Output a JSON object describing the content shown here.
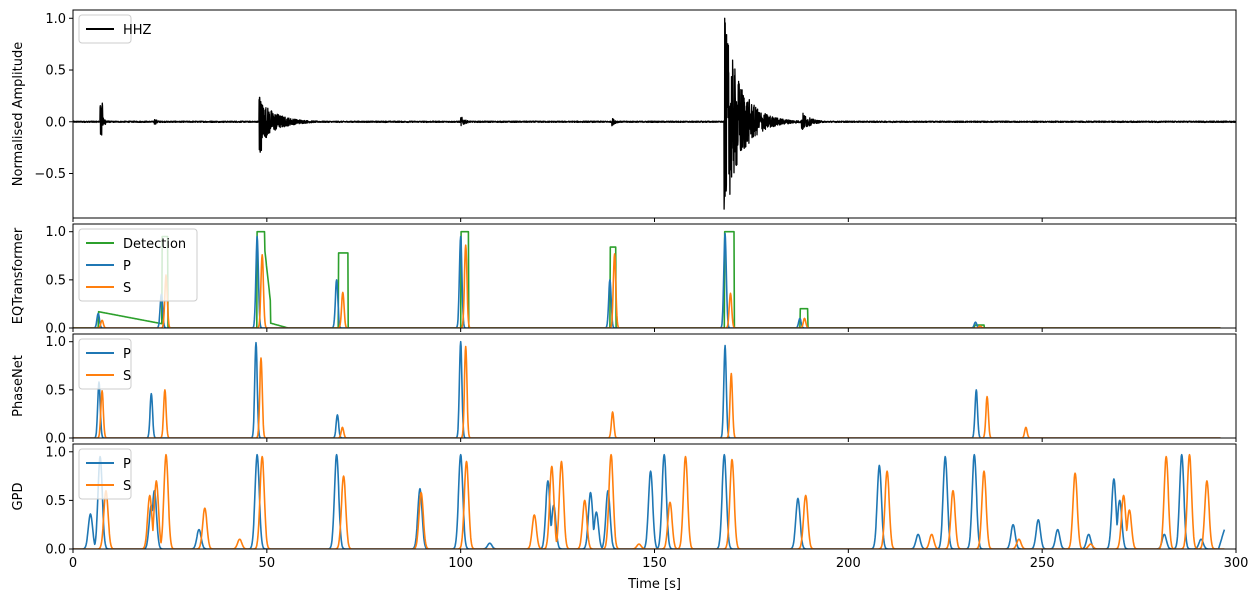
{
  "chart_data": {
    "type": "line",
    "xlabel": "Time [s]",
    "xlim": [
      0,
      300
    ],
    "xticks": [
      0,
      50,
      100,
      150,
      200,
      250,
      300
    ],
    "colors": {
      "waveform": "#000000",
      "detection": "#2ca02c",
      "P": "#1f77b4",
      "S": "#ff7f0e"
    },
    "panels": [
      {
        "id": "waveform",
        "ylabel": "Normalised Amplitude",
        "ylim": [
          -0.93,
          1.08
        ],
        "yticks": [
          -0.5,
          0.0,
          0.5,
          1.0
        ],
        "ytick_labels": [
          "−0.5",
          "0.0",
          "0.5",
          "1.0"
        ],
        "show_xtick_labels": false,
        "legend": {
          "position": "upper-left",
          "entries": [
            "HHZ"
          ]
        },
        "series": [
          {
            "name": "HHZ",
            "kind": "waveform",
            "color": "#000000",
            "noise": 0.006,
            "bursts": [
              {
                "t": 7,
                "amp": 0.18,
                "min": -0.14,
                "decay": 2
              },
              {
                "t": 21,
                "amp": 0.03,
                "decay": 3
              },
              {
                "t": 48,
                "amp": 0.24,
                "min": -0.31,
                "decay": 12
              },
              {
                "t": 100,
                "amp": 0.06,
                "decay": 3
              },
              {
                "t": 139,
                "amp": 0.04,
                "decay": 3
              },
              {
                "t": 168,
                "amp": 1.0,
                "min": -0.85,
                "decay": 12
              },
              {
                "t": 188,
                "amp": 0.1,
                "decay": 6
              }
            ]
          }
        ]
      },
      {
        "id": "eqt",
        "ylabel": "EQTransformer",
        "ylim": [
          0,
          1.08
        ],
        "yticks": [
          0.0,
          0.5,
          1.0
        ],
        "ytick_labels": [
          "0.0",
          "0.5",
          "1.0"
        ],
        "show_xtick_labels": false,
        "legend": {
          "position": "upper-left",
          "entries": [
            "Detection",
            "P",
            "S"
          ]
        },
        "series": [
          {
            "name": "Detection",
            "kind": "segments",
            "color": "#2ca02c",
            "end": 296,
            "segments": [
              {
                "t1": 6.5,
                "t2": 23.5,
                "val": 0.17,
                "dec": 0.04
              },
              {
                "t1": 23.0,
                "t2": 24.5,
                "val": 0.95
              },
              {
                "t1": 47.5,
                "t2": 49.5,
                "val": 1.0
              },
              {
                "t1": 49.5,
                "t2": 51.0,
                "val": 0.8,
                "dec": 0.25
              },
              {
                "t1": 51.0,
                "t2": 55.5,
                "val": 0.05,
                "dec": 0.0
              },
              {
                "t1": 68.5,
                "t2": 71.0,
                "val": 0.78
              },
              {
                "t1": 100.0,
                "t2": 102.0,
                "val": 1.0
              },
              {
                "t1": 138.5,
                "t2": 140.0,
                "val": 0.84
              },
              {
                "t1": 168.0,
                "t2": 170.5,
                "val": 1.0
              },
              {
                "t1": 187.5,
                "t2": 189.5,
                "val": 0.2
              },
              {
                "t1": 232.5,
                "t2": 235.0,
                "val": 0.03
              }
            ]
          },
          {
            "name": "P",
            "kind": "peaks",
            "color": "#1f77b4",
            "end": 296,
            "peaks": [
              [
                6.5,
                0.15
              ],
              [
                22.8,
                0.35
              ],
              [
                47.5,
                0.95
              ],
              [
                68.0,
                0.5
              ],
              [
                100.0,
                0.95
              ],
              [
                138.5,
                0.5
              ],
              [
                168.2,
                0.98
              ],
              [
                187.5,
                0.1
              ],
              [
                232.8,
                0.06
              ]
            ]
          },
          {
            "name": "S",
            "kind": "peaks",
            "color": "#ff7f0e",
            "end": 296,
            "peaks": [
              [
                7.5,
                0.08
              ],
              [
                24.0,
                0.55
              ],
              [
                48.8,
                0.76
              ],
              [
                69.6,
                0.37
              ],
              [
                101.3,
                0.86
              ],
              [
                139.7,
                0.77
              ],
              [
                169.6,
                0.36
              ],
              [
                188.7,
                0.1
              ],
              [
                234.0,
                0.02
              ]
            ]
          }
        ]
      },
      {
        "id": "phasenet",
        "ylabel": "PhaseNet",
        "ylim": [
          0,
          1.08
        ],
        "yticks": [
          0.0,
          0.5,
          1.0
        ],
        "ytick_labels": [
          "0.0",
          "0.5",
          "1.0"
        ],
        "show_xtick_labels": false,
        "legend": {
          "position": "upper-left",
          "entries": [
            "P",
            "S"
          ]
        },
        "series": [
          {
            "name": "P",
            "kind": "peaks",
            "color": "#1f77b4",
            "end": 296,
            "peaks": [
              [
                6.7,
                0.58
              ],
              [
                20.2,
                0.46
              ],
              [
                47.2,
                0.99
              ],
              [
                68.2,
                0.24
              ],
              [
                100.0,
                1.0
              ],
              [
                168.2,
                0.96
              ],
              [
                233.0,
                0.5
              ]
            ]
          },
          {
            "name": "S",
            "kind": "peaks",
            "color": "#ff7f0e",
            "end": 296,
            "peaks": [
              [
                7.5,
                0.49
              ],
              [
                23.7,
                0.5
              ],
              [
                48.5,
                0.83
              ],
              [
                69.5,
                0.11
              ],
              [
                101.3,
                0.95
              ],
              [
                139.2,
                0.27
              ],
              [
                169.8,
                0.67
              ],
              [
                235.8,
                0.43
              ],
              [
                245.8,
                0.11
              ]
            ]
          }
        ]
      },
      {
        "id": "gpd",
        "ylabel": "GPD",
        "ylim": [
          0,
          1.08
        ],
        "yticks": [
          0.0,
          0.5,
          1.0
        ],
        "ytick_labels": [
          "0.0",
          "0.5",
          "1.0"
        ],
        "show_xtick_labels": true,
        "legend": {
          "position": "upper-left",
          "entries": [
            "P",
            "S"
          ]
        },
        "series": [
          {
            "name": "P",
            "kind": "peaks",
            "color": "#1f77b4",
            "end": 297,
            "tail_end": 0.2,
            "peaks": [
              [
                4.5,
                0.36
              ],
              [
                7.0,
                0.95
              ],
              [
                20.2,
                0.45
              ],
              [
                21.0,
                0.6
              ],
              [
                32.5,
                0.2
              ],
              [
                47.5,
                0.97
              ],
              [
                68.0,
                0.97
              ],
              [
                89.5,
                0.62
              ],
              [
                100.0,
                0.97
              ],
              [
                107.5,
                0.06
              ],
              [
                122.5,
                0.7
              ],
              [
                124.0,
                0.45
              ],
              [
                133.5,
                0.58
              ],
              [
                135.0,
                0.38
              ],
              [
                138.0,
                0.6
              ],
              [
                149.0,
                0.8
              ],
              [
                152.5,
                0.97
              ],
              [
                168.0,
                0.97
              ],
              [
                187.0,
                0.52
              ],
              [
                208.0,
                0.86
              ],
              [
                218.0,
                0.15
              ],
              [
                225.0,
                0.95
              ],
              [
                232.5,
                0.97
              ],
              [
                242.5,
                0.25
              ],
              [
                249.0,
                0.3
              ],
              [
                254.0,
                0.2
              ],
              [
                262.0,
                0.15
              ],
              [
                268.5,
                0.72
              ],
              [
                270.0,
                0.5
              ],
              [
                281.5,
                0.15
              ],
              [
                286.0,
                0.97
              ],
              [
                291.0,
                0.1
              ]
            ]
          },
          {
            "name": "S",
            "kind": "peaks",
            "color": "#ff7f0e",
            "end": 297,
            "peaks": [
              [
                8.5,
                0.6
              ],
              [
                19.8,
                0.55
              ],
              [
                21.5,
                0.7
              ],
              [
                24.0,
                0.97
              ],
              [
                34.0,
                0.42
              ],
              [
                43.0,
                0.1
              ],
              [
                48.8,
                0.95
              ],
              [
                69.8,
                0.75
              ],
              [
                89.8,
                0.58
              ],
              [
                101.5,
                0.9
              ],
              [
                119.0,
                0.35
              ],
              [
                123.5,
                0.85
              ],
              [
                126.0,
                0.9
              ],
              [
                132.0,
                0.5
              ],
              [
                138.8,
                0.97
              ],
              [
                146.0,
                0.05
              ],
              [
                154.0,
                0.48
              ],
              [
                158.0,
                0.95
              ],
              [
                170.0,
                0.92
              ],
              [
                189.0,
                0.55
              ],
              [
                210.0,
                0.8
              ],
              [
                221.5,
                0.15
              ],
              [
                227.0,
                0.6
              ],
              [
                235.0,
                0.8
              ],
              [
                244.0,
                0.1
              ],
              [
                258.5,
                0.78
              ],
              [
                262.5,
                0.05
              ],
              [
                271.0,
                0.55
              ],
              [
                272.5,
                0.4
              ],
              [
                282.0,
                0.95
              ],
              [
                288.0,
                0.97
              ],
              [
                292.5,
                0.7
              ]
            ]
          }
        ]
      }
    ]
  }
}
